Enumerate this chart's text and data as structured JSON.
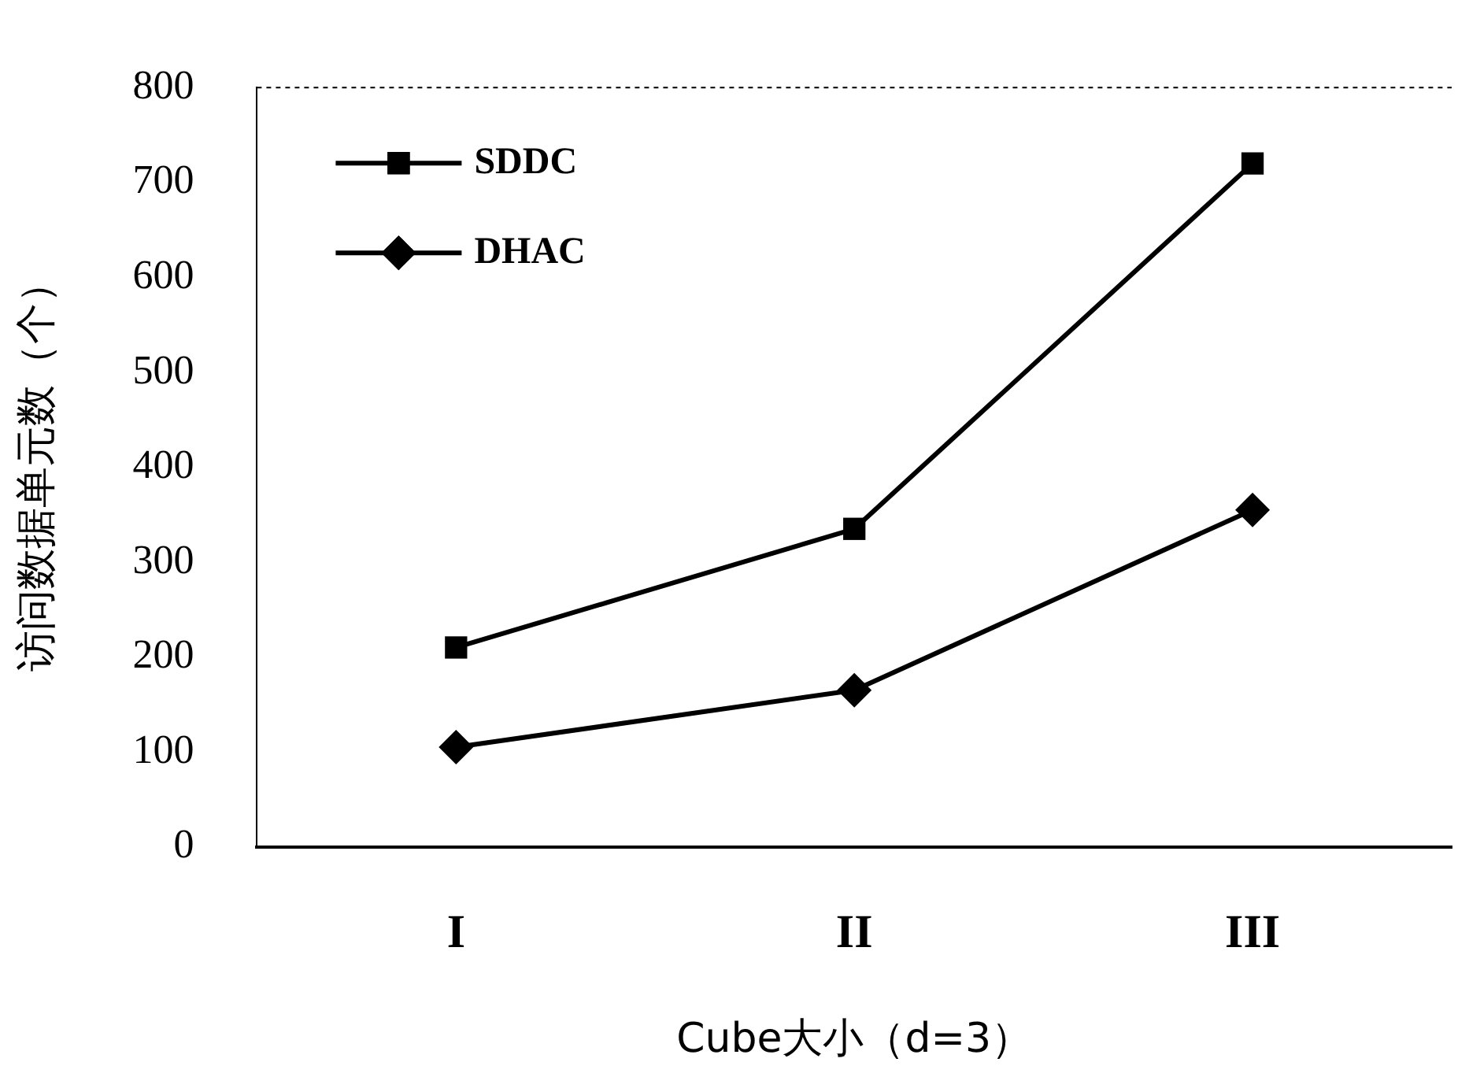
{
  "chart_data": {
    "type": "line",
    "xlabel": "Cube大小（d=3）",
    "ylabel": "访问数据单元数（个）",
    "categories": [
      "I",
      "II",
      "III"
    ],
    "series": [
      {
        "name": "SDDC",
        "color": "#000000",
        "marker": "square",
        "values": [
          210,
          335,
          720
        ]
      },
      {
        "name": "DHAC",
        "color": "#000000",
        "marker": "diamond",
        "values": [
          105,
          165,
          355
        ]
      }
    ],
    "ylim": [
      0,
      800
    ],
    "yticks": [
      0,
      100,
      200,
      300,
      400,
      500,
      600,
      700,
      800
    ],
    "grid": false,
    "legend": "top left",
    "line_style": "solid"
  }
}
